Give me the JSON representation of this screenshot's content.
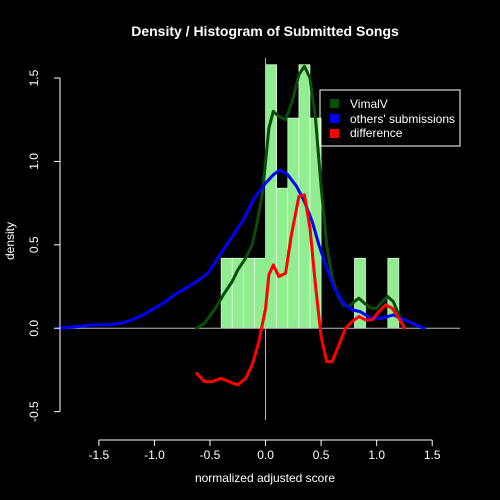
{
  "chart_data": {
    "type": "histogram+density",
    "title": "Density / Histogram of Submitted Songs",
    "xlabel": "normalized adjusted score",
    "ylabel": "density",
    "xlim": [
      -1.85,
      1.75
    ],
    "ylim": [
      -0.55,
      1.62
    ],
    "x_ticks": [
      -1.5,
      -1.0,
      -0.5,
      0.0,
      0.5,
      1.0,
      1.5
    ],
    "x_tick_labels": [
      "-1.5",
      "-1.0",
      "-0.5",
      "0.0",
      "0.5",
      "1.0",
      "1.5"
    ],
    "y_ticks": [
      -0.5,
      0.0,
      0.5,
      1.0,
      1.5
    ],
    "y_tick_labels": [
      "-0.5",
      "0.0",
      "0.5",
      "1.0",
      "1.5"
    ],
    "histogram": {
      "color": "#90EE90",
      "bar_width": 0.1,
      "bars": [
        {
          "x0": -0.4,
          "value": 0.42
        },
        {
          "x0": -0.3,
          "value": 0.42
        },
        {
          "x0": -0.2,
          "value": 0.42
        },
        {
          "x0": -0.1,
          "value": 0.42
        },
        {
          "x0": 0.0,
          "value": 1.58
        },
        {
          "x0": 0.1,
          "value": 0.84
        },
        {
          "x0": 0.2,
          "value": 1.26
        },
        {
          "x0": 0.3,
          "value": 1.58
        },
        {
          "x0": 0.4,
          "value": 1.26
        },
        {
          "x0": 0.8,
          "value": 0.42
        },
        {
          "x0": 1.1,
          "value": 0.42
        }
      ]
    },
    "series": [
      {
        "name": "VimalV",
        "color": "#0A4D0A",
        "points": [
          [
            -0.62,
            0.0
          ],
          [
            -0.55,
            0.03
          ],
          [
            -0.45,
            0.12
          ],
          [
            -0.38,
            0.2
          ],
          [
            -0.3,
            0.28
          ],
          [
            -0.25,
            0.35
          ],
          [
            -0.18,
            0.42
          ],
          [
            -0.12,
            0.5
          ],
          [
            -0.08,
            0.62
          ],
          [
            -0.03,
            0.8
          ],
          [
            0.0,
            1.0
          ],
          [
            0.03,
            1.2
          ],
          [
            0.07,
            1.3
          ],
          [
            0.12,
            1.27
          ],
          [
            0.18,
            1.25
          ],
          [
            0.24,
            1.36
          ],
          [
            0.3,
            1.52
          ],
          [
            0.35,
            1.57
          ],
          [
            0.4,
            1.5
          ],
          [
            0.45,
            1.25
          ],
          [
            0.5,
            0.85
          ],
          [
            0.55,
            0.5
          ],
          [
            0.6,
            0.3
          ],
          [
            0.65,
            0.2
          ],
          [
            0.7,
            0.14
          ],
          [
            0.75,
            0.13
          ],
          [
            0.8,
            0.16
          ],
          [
            0.84,
            0.18
          ],
          [
            0.89,
            0.15
          ],
          [
            0.95,
            0.12
          ],
          [
            1.0,
            0.12
          ],
          [
            1.05,
            0.16
          ],
          [
            1.1,
            0.19
          ],
          [
            1.15,
            0.16
          ],
          [
            1.2,
            0.08
          ],
          [
            1.25,
            0.01
          ]
        ]
      },
      {
        "name": "others' submissions",
        "color": "#0000FF",
        "points": [
          [
            -1.87,
            0.0
          ],
          [
            -1.7,
            0.01
          ],
          [
            -1.55,
            0.02
          ],
          [
            -1.42,
            0.02
          ],
          [
            -1.3,
            0.03
          ],
          [
            -1.2,
            0.05
          ],
          [
            -1.1,
            0.08
          ],
          [
            -1.0,
            0.12
          ],
          [
            -0.9,
            0.16
          ],
          [
            -0.82,
            0.2
          ],
          [
            -0.72,
            0.24
          ],
          [
            -0.62,
            0.28
          ],
          [
            -0.52,
            0.33
          ],
          [
            -0.45,
            0.4
          ],
          [
            -0.38,
            0.47
          ],
          [
            -0.3,
            0.55
          ],
          [
            -0.2,
            0.65
          ],
          [
            -0.1,
            0.78
          ],
          [
            0.0,
            0.87
          ],
          [
            0.07,
            0.92
          ],
          [
            0.13,
            0.95
          ],
          [
            0.2,
            0.92
          ],
          [
            0.28,
            0.85
          ],
          [
            0.35,
            0.76
          ],
          [
            0.42,
            0.64
          ],
          [
            0.48,
            0.5
          ],
          [
            0.55,
            0.36
          ],
          [
            0.62,
            0.24
          ],
          [
            0.7,
            0.15
          ],
          [
            0.78,
            0.11
          ],
          [
            0.85,
            0.1
          ],
          [
            0.9,
            0.08
          ],
          [
            0.95,
            0.06
          ],
          [
            1.05,
            0.06
          ],
          [
            1.15,
            0.08
          ],
          [
            1.25,
            0.05
          ],
          [
            1.35,
            0.02
          ],
          [
            1.43,
            0.0
          ]
        ]
      },
      {
        "name": "difference",
        "color": "#FF0000",
        "points": [
          [
            -0.62,
            -0.27
          ],
          [
            -0.55,
            -0.32
          ],
          [
            -0.48,
            -0.32
          ],
          [
            -0.4,
            -0.3
          ],
          [
            -0.33,
            -0.32
          ],
          [
            -0.25,
            -0.34
          ],
          [
            -0.18,
            -0.3
          ],
          [
            -0.12,
            -0.22
          ],
          [
            -0.06,
            -0.08
          ],
          [
            0.0,
            0.12
          ],
          [
            0.03,
            0.32
          ],
          [
            0.07,
            0.38
          ],
          [
            0.12,
            0.31
          ],
          [
            0.18,
            0.33
          ],
          [
            0.23,
            0.55
          ],
          [
            0.3,
            0.79
          ],
          [
            0.35,
            0.8
          ],
          [
            0.4,
            0.6
          ],
          [
            0.45,
            0.25
          ],
          [
            0.5,
            -0.05
          ],
          [
            0.55,
            -0.2
          ],
          [
            0.6,
            -0.2
          ],
          [
            0.66,
            -0.1
          ],
          [
            0.72,
            0.0
          ],
          [
            0.78,
            0.04
          ],
          [
            0.84,
            0.07
          ],
          [
            0.9,
            0.05
          ],
          [
            0.96,
            0.05
          ],
          [
            1.02,
            0.1
          ],
          [
            1.08,
            0.14
          ],
          [
            1.14,
            0.12
          ],
          [
            1.2,
            0.06
          ],
          [
            1.25,
            0.0
          ]
        ]
      }
    ],
    "legend": {
      "placement": "top-right",
      "entries": [
        "VimalV",
        "others' submissions",
        "difference"
      ]
    },
    "reference_lines": {
      "horizontal_at": 0.0,
      "vertical_at": 0.0,
      "color": "#BEBEBE"
    },
    "grid": false
  }
}
